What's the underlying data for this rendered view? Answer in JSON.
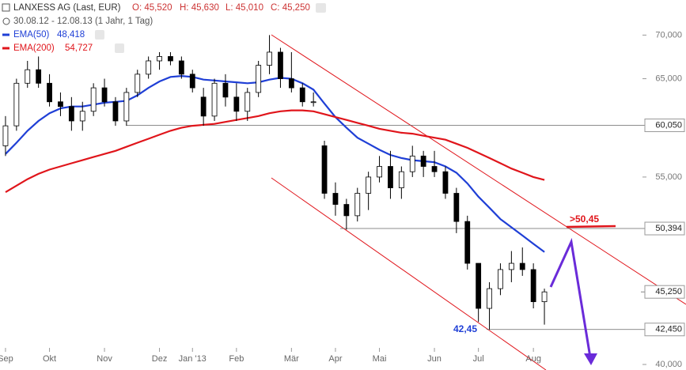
{
  "header": {
    "title": "LANXESS AG (Last, EUR)",
    "ohlc": [
      "O: 45,520",
      "H: 45,630",
      "L: 45,010",
      "C: 45,250"
    ],
    "range": "30.08.12 - 12.08.13 (1 Jahr, 1 Tag)"
  },
  "chart_data": {
    "type": "candlestick",
    "log_scale": true,
    "categories": [
      "Sep",
      null,
      null,
      null,
      "Okt",
      null,
      null,
      null,
      null,
      "Nov",
      null,
      null,
      null,
      null,
      "Dez",
      null,
      null,
      "Jan '13",
      null,
      null,
      null,
      "Feb",
      null,
      null,
      null,
      null,
      "Mär",
      null,
      null,
      null,
      "Apr",
      null,
      null,
      null,
      "Mai",
      null,
      null,
      null,
      null,
      "Jun",
      null,
      null,
      null,
      "Jul",
      null,
      null,
      null,
      null,
      "Aug",
      null
    ],
    "open": [
      58,
      60,
      64.5,
      66,
      64.5,
      62.5,
      62,
      60.5,
      61.5,
      64,
      62.5,
      60.5,
      63.5,
      65.5,
      67,
      67.5,
      67,
      65.5,
      63,
      61,
      64.5,
      63,
      61.5,
      63.5,
      66.5,
      68,
      65,
      64,
      62.5,
      58,
      53.5,
      52.5,
      51.5,
      53.5,
      55,
      56,
      54,
      55.5,
      57,
      56,
      55.5,
      53.5,
      51,
      47.5,
      44,
      45.5,
      47,
      47.5,
      47,
      44.5
    ],
    "high": [
      61,
      65,
      67,
      67.5,
      65.5,
      63.5,
      63,
      62.5,
      64.5,
      65,
      63,
      64,
      66,
      67.5,
      68,
      68,
      67.5,
      66,
      64,
      65,
      65.5,
      64.5,
      64,
      67,
      70,
      68.5,
      68,
      64.5,
      63.5,
      58.5,
      54.5,
      53,
      54,
      55.5,
      57,
      57.5,
      56,
      58,
      57.5,
      57.5,
      56,
      54,
      51.5,
      47.5,
      46,
      47.5,
      48.5,
      48.8,
      47.5,
      45.5
    ],
    "low": [
      57,
      59.5,
      64,
      64,
      62,
      61,
      59.5,
      59.5,
      61,
      62,
      60,
      60,
      63,
      65,
      66,
      66.5,
      65,
      63.5,
      60,
      60.5,
      62,
      60.5,
      60.5,
      63,
      65.5,
      64,
      63.5,
      62,
      62,
      53,
      51.5,
      50.3,
      51,
      52,
      54.5,
      53,
      53,
      55,
      55,
      55,
      53,
      50,
      47,
      43,
      42.45,
      45,
      46,
      46.5,
      44,
      42.8
    ],
    "close": [
      60,
      64.5,
      66,
      64.5,
      62.5,
      62,
      60.5,
      61.5,
      64,
      62.5,
      60.5,
      63.5,
      65.5,
      67,
      67.5,
      67,
      65.5,
      64,
      61,
      64.5,
      63,
      61.5,
      63.5,
      66.5,
      68,
      65,
      64,
      62.5,
      62.5,
      53.5,
      52.5,
      51.5,
      53.5,
      55,
      56,
      54,
      55.5,
      57,
      56,
      55.5,
      53.5,
      51,
      47.5,
      44,
      45.5,
      47,
      47.5,
      47,
      44.5,
      45.25
    ],
    "series": [
      {
        "name": "EMA(50)",
        "color": "#1f3fd6",
        "value_label": "48,418",
        "values": [
          57.2,
          58.3,
          59.5,
          60.5,
          61.3,
          61.8,
          62.0,
          62.0,
          62.2,
          62.4,
          62.5,
          62.6,
          63.2,
          64.0,
          64.7,
          65.2,
          65.3,
          65.2,
          64.9,
          64.8,
          64.7,
          64.6,
          64.5,
          64.6,
          64.9,
          65.1,
          65.0,
          64.5,
          63.8,
          62.3,
          60.9,
          59.8,
          58.8,
          58.2,
          57.6,
          57.1,
          56.8,
          56.6,
          56.5,
          56.4,
          56.0,
          55.4,
          54.4,
          53.2,
          52.2,
          51.2,
          50.5,
          49.8,
          49.1,
          48.418
        ]
      },
      {
        "name": "EMA(200)",
        "color": "#e0151b",
        "value_label": "54,727",
        "values": [
          53.6,
          54.2,
          54.8,
          55.3,
          55.7,
          56.0,
          56.3,
          56.6,
          56.9,
          57.2,
          57.5,
          57.9,
          58.3,
          58.7,
          59.1,
          59.5,
          59.8,
          60.0,
          60.1,
          60.2,
          60.4,
          60.6,
          60.8,
          61.0,
          61.3,
          61.5,
          61.6,
          61.6,
          61.5,
          61.2,
          60.9,
          60.6,
          60.3,
          60.0,
          59.7,
          59.5,
          59.3,
          59.2,
          59.0,
          58.8,
          58.6,
          58.2,
          57.8,
          57.3,
          56.8,
          56.3,
          55.8,
          55.4,
          55.0,
          54.727
        ]
      }
    ],
    "ylim": [
      40,
      74.3
    ],
    "yticks": [
      {
        "value": 40,
        "label": "40,000"
      },
      {
        "value": 55,
        "label": "55,000"
      },
      {
        "value": 65,
        "label": "65,000"
      },
      {
        "value": 70,
        "label": "70,000"
      }
    ],
    "levels": [
      {
        "value": 60.05,
        "label": "60,050"
      },
      {
        "value": 50.394,
        "label": "50,394"
      },
      {
        "value": 45.25,
        "label": "45,250"
      },
      {
        "value": 42.45,
        "label": "42,450"
      }
    ],
    "annotations": [
      {
        "text": ">50,45",
        "color": "#e0151b"
      },
      {
        "text": "42,45",
        "color": "#1f3fd6"
      }
    ]
  }
}
